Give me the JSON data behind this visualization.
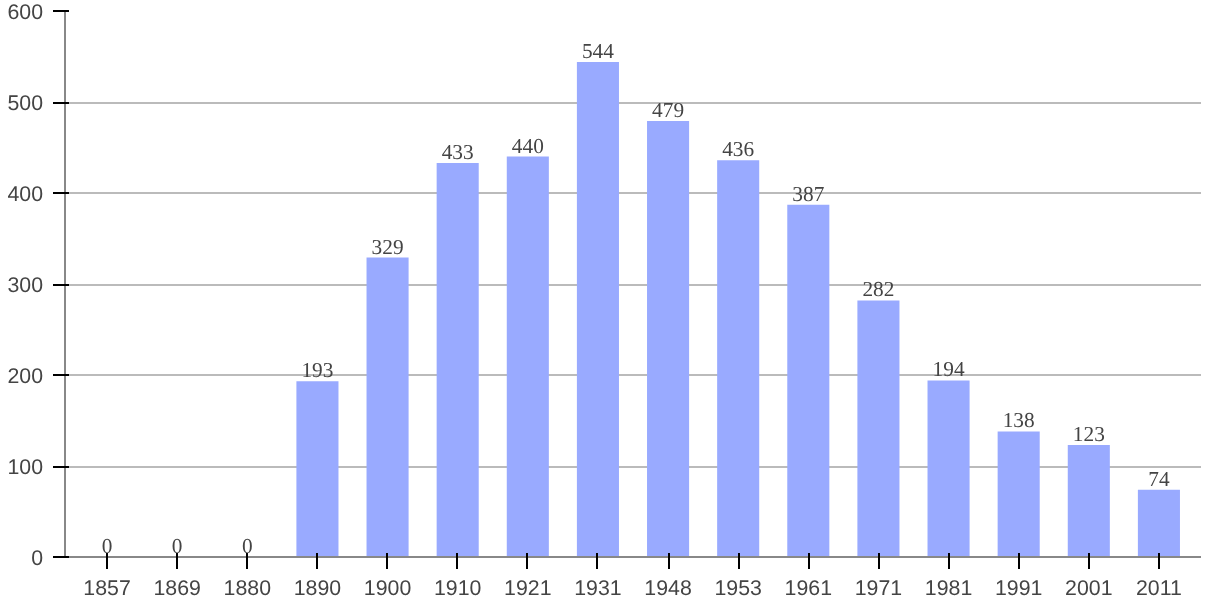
{
  "chart_data": {
    "type": "bar",
    "categories": [
      "1857",
      "1869",
      "1880",
      "1890",
      "1900",
      "1910",
      "1921",
      "1931",
      "1948",
      "1953",
      "1961",
      "1971",
      "1981",
      "1991",
      "2001",
      "2011"
    ],
    "values": [
      0,
      0,
      0,
      193,
      329,
      433,
      440,
      544,
      479,
      436,
      387,
      282,
      194,
      138,
      123,
      74
    ],
    "color": "#99aaff",
    "ylim": [
      0,
      600
    ],
    "yticks": [
      0,
      100,
      200,
      300,
      400,
      500,
      600
    ],
    "grid": "y",
    "data_labels": true
  }
}
